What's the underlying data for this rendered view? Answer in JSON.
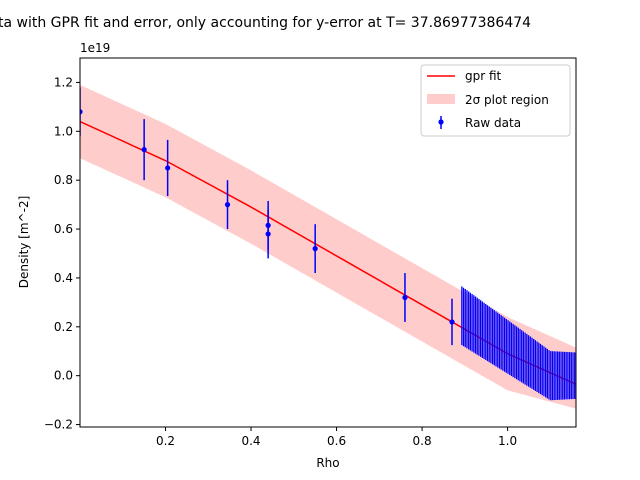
{
  "chart_data": {
    "type": "line",
    "title": "ta with GPR fit and error, only accounting for y-error at T= 37.86977386474",
    "xlabel": "Rho",
    "ylabel": "Density [m^-2]",
    "y_offset_label": "1e19",
    "xlim": [
      0.0,
      1.16
    ],
    "ylim": [
      -0.21,
      1.3
    ],
    "xticks": [
      0.2,
      0.4,
      0.6,
      0.8,
      1.0
    ],
    "xtick_labels": [
      "0.2",
      "0.4",
      "0.6",
      "0.8",
      "1.0"
    ],
    "yticks": [
      -0.2,
      0.0,
      0.2,
      0.4,
      0.6,
      0.8,
      1.0,
      1.2
    ],
    "ytick_labels": [
      "−0.2",
      "0.0",
      "0.2",
      "0.4",
      "0.6",
      "0.8",
      "1.0",
      "1.2"
    ],
    "grid": false,
    "legend_position": "top-right",
    "legend": [
      {
        "label": "gpr fit",
        "kind": "line",
        "color": "#ff0000"
      },
      {
        "label": "2σ plot region",
        "kind": "band",
        "color": "#ffcccc"
      },
      {
        "label": "Raw data",
        "kind": "errorbar",
        "color": "#0000ff"
      }
    ],
    "gpr_fit": {
      "name": "gpr fit",
      "color": "#ff0000",
      "x": [
        0.0,
        0.2,
        0.4,
        0.6,
        0.8,
        1.0,
        1.16
      ],
      "y": [
        1.04,
        0.88,
        0.69,
        0.49,
        0.29,
        0.09,
        -0.035
      ]
    },
    "band": {
      "name": "2σ plot region",
      "color": "#ffcccc",
      "x": [
        0.0,
        0.2,
        0.4,
        0.6,
        0.8,
        1.0,
        1.16
      ],
      "upper": [
        1.19,
        1.03,
        0.84,
        0.64,
        0.44,
        0.24,
        0.115
      ],
      "lower": [
        0.89,
        0.73,
        0.54,
        0.34,
        0.14,
        -0.06,
        -0.135
      ]
    },
    "raw_data": {
      "name": "Raw data",
      "color": "#0000ff",
      "points": [
        {
          "x": 0.0,
          "y": 1.08,
          "err": 0.1
        },
        {
          "x": 0.15,
          "y": 0.925,
          "err": 0.125
        },
        {
          "x": 0.205,
          "y": 0.85,
          "err": 0.115
        },
        {
          "x": 0.345,
          "y": 0.7,
          "err": 0.1
        },
        {
          "x": 0.44,
          "y": 0.615,
          "err": 0.1
        },
        {
          "x": 0.44,
          "y": 0.58,
          "err": 0.1
        },
        {
          "x": 0.55,
          "y": 0.52,
          "err": 0.1
        },
        {
          "x": 0.76,
          "y": 0.32,
          "err": 0.1
        },
        {
          "x": 0.87,
          "y": 0.22,
          "err": 0.095
        }
      ],
      "dense_region": {
        "x_start": 0.893,
        "x_end": 1.16,
        "step": 0.004,
        "y_start": 0.245,
        "y_end": 0.0,
        "y_level_x": 1.1,
        "err_start": 0.12,
        "err_end": 0.095
      }
    }
  }
}
